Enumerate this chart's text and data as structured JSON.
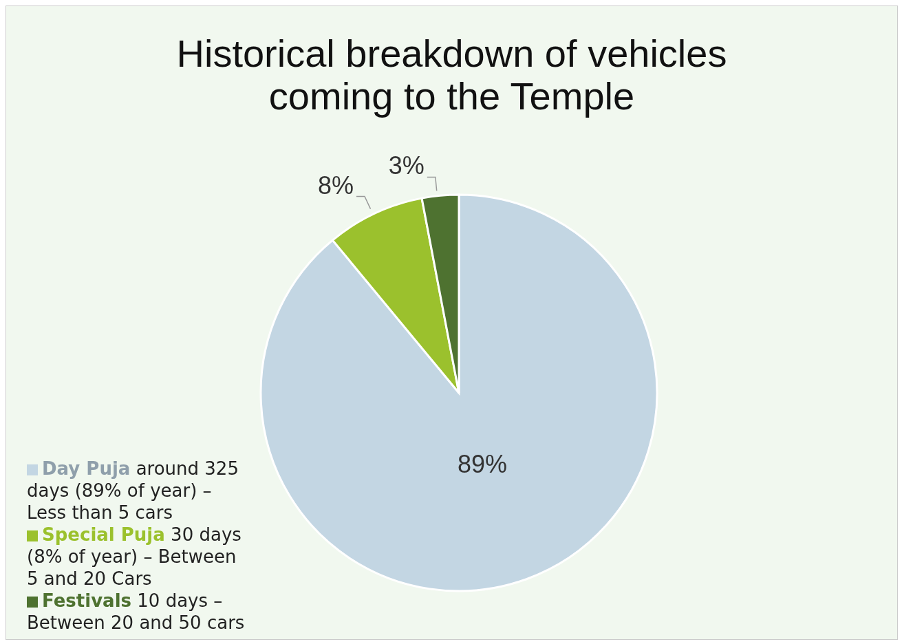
{
  "chart_data": {
    "type": "pie",
    "title": "Historical breakdown of vehicles coming to the Temple",
    "categories": [
      "Day Puja",
      "Special Puja",
      "Festivals"
    ],
    "values": [
      89,
      8,
      3
    ],
    "colors": [
      "#c3d6e3",
      "#9bc12d",
      "#4e7230"
    ],
    "value_labels": [
      "89%",
      "8%",
      "3%"
    ],
    "legend": "bottom left",
    "annotations": [
      "around 325 days (89% of year) – Less than 5 cars",
      "30 days (8% of year) – Between 5 and 20 Cars",
      "10 days – Between 20 and 50 cars"
    ]
  }
}
